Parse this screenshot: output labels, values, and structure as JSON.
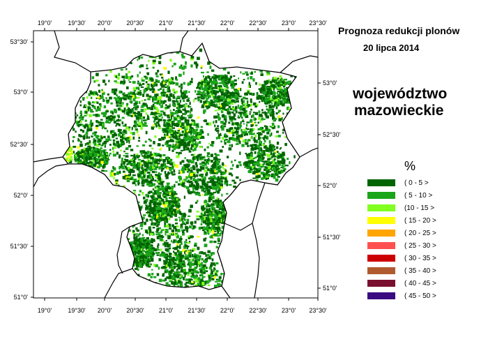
{
  "title": {
    "line1": "Prognoza redukcji plonów",
    "line2": "20 lipca 2014"
  },
  "region": {
    "line1": "województwo",
    "line2": "mazowieckie"
  },
  "legend": {
    "unit": "%",
    "items": [
      {
        "label": "( 0 - 5 >",
        "color": "#006400"
      },
      {
        "label": "( 5 - 10 >",
        "color": "#1aa51a"
      },
      {
        "label": "(10 - 15 >",
        "color": "#80ff20"
      },
      {
        "label": "( 15 - 20 >",
        "color": "#ffff00"
      },
      {
        "label": "( 20 - 25 >",
        "color": "#ffa500"
      },
      {
        "label": "( 25 - 30 >",
        "color": "#ff5050"
      },
      {
        "label": "( 30 - 35 >",
        "color": "#cc0000"
      },
      {
        "label": "( 35 - 40 >",
        "color": "#b05a30"
      },
      {
        "label": "( 40 - 45 >",
        "color": "#7a1030"
      },
      {
        "label": "( 45 - 50 >",
        "color": "#3a0a80"
      }
    ]
  },
  "axes": {
    "longitude_labels": [
      "19°0'",
      "19°30'",
      "20°0'",
      "20°30'",
      "21°0'",
      "21°30'",
      "22°0'",
      "22°30'",
      "23°0'",
      "23°30'"
    ],
    "latitude_left_labels": [
      "53°30'",
      "53°0'",
      "52°30'",
      "52°0'",
      "51°30'",
      "51°0'"
    ],
    "latitude_right_labels": [
      "53°0'",
      "52°30'",
      "52°0'",
      "51°30'",
      "51°0'"
    ]
  }
}
